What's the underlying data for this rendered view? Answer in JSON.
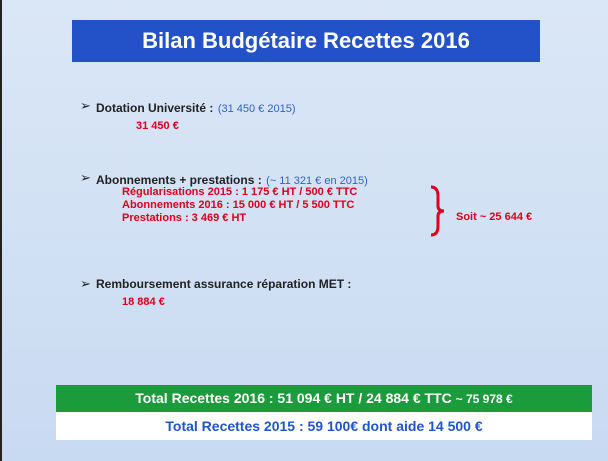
{
  "title": "Bilan Budgétaire Recettes 2016",
  "items": [
    {
      "label": "Dotation Université :",
      "note": "(31 450 € 2015)",
      "amount": "31 450 €"
    },
    {
      "label": "Abonnements + prestations :",
      "note": "(~ 11 321 € en 2015)",
      "lines": [
        "Régularisations 2015 :   1 175 € HT / 500 € TTC",
        "Abonnements   2016 : 15 000 € HT / 5 500 TTC",
        "Prestations :   3 469 € HT"
      ],
      "summary": "Soit ~ 25 644 €"
    },
    {
      "label": "Remboursement assurance réparation MET :",
      "amount": "18 884 €"
    }
  ],
  "totals": {
    "current": "Total Recettes 2016 : 51 094 € HT / 24 884 € TTC",
    "current_extra": "~ 75 978 €",
    "previous": "Total Recettes 2015 : 59 100€ dont aide 14 500 €"
  }
}
